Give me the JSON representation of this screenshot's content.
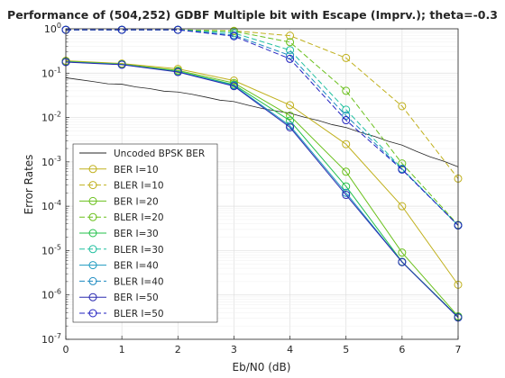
{
  "chart_data": {
    "type": "line",
    "title": "Performance of (504,252) GDBF Multiple bit with Escape (Imprv.); theta=-0.3",
    "xlabel": "Eb/N0 (dB)",
    "ylabel": "Error Rates",
    "xlim": [
      0,
      7
    ],
    "ylim": [
      1e-07,
      1
    ],
    "yscale": "log",
    "grid": true,
    "legend_position": "bottom-left",
    "x": [
      0,
      1,
      2,
      3,
      4,
      5,
      6,
      7
    ],
    "xticks": [
      "0",
      "1",
      "2",
      "3",
      "4",
      "5",
      "6",
      "7"
    ],
    "yticks": [
      {
        "value": 1e-07,
        "base": "10",
        "exp": "-7"
      },
      {
        "value": 1e-06,
        "base": "10",
        "exp": "-6"
      },
      {
        "value": 1e-05,
        "base": "10",
        "exp": "-5"
      },
      {
        "value": 0.0001,
        "base": "10",
        "exp": "-4"
      },
      {
        "value": 0.001,
        "base": "10",
        "exp": "-3"
      },
      {
        "value": 0.01,
        "base": "10",
        "exp": "-2"
      },
      {
        "value": 0.1,
        "base": "10",
        "exp": "-1"
      },
      {
        "value": 1,
        "base": "10",
        "exp": "0"
      }
    ],
    "series": [
      {
        "name": "Uncoded BPSK BER",
        "color": "#262626",
        "dash": "solid",
        "marker": "none",
        "x": [
          0,
          0.25,
          0.5,
          0.75,
          1,
          1.25,
          1.5,
          1.75,
          2,
          2.25,
          2.5,
          2.75,
          3,
          3.25,
          3.5,
          3.75,
          4,
          4.25,
          4.5,
          4.75,
          5,
          5.25,
          5.5,
          5.75,
          6,
          6.25,
          6.5,
          6.75,
          7
        ],
        "values": [
          0.0786,
          0.0712,
          0.0643,
          0.0576,
          0.0563,
          0.0488,
          0.0448,
          0.0392,
          0.0375,
          0.0334,
          0.0288,
          0.0246,
          0.0229,
          0.019,
          0.016,
          0.0141,
          0.0125,
          0.0102,
          0.00862,
          0.00692,
          0.00595,
          0.00463,
          0.00378,
          0.00292,
          0.00239,
          0.00174,
          0.0013,
          0.00103,
          0.000773
        ]
      },
      {
        "name": "BER I=10",
        "color": "#c0b01c",
        "dash": "solid",
        "marker": "circle",
        "values": [
          0.19,
          0.165,
          0.125,
          0.068,
          0.019,
          0.0025,
          0.0001,
          1.7e-06
        ]
      },
      {
        "name": "BLER I=10",
        "color": "#c0b01c",
        "dash": "dashed",
        "marker": "circle",
        "values": [
          0.95,
          0.95,
          0.95,
          0.9,
          0.7,
          0.22,
          0.018,
          0.00042
        ]
      },
      {
        "name": "BER I=20",
        "color": "#6ac01c",
        "dash": "solid",
        "marker": "circle",
        "values": [
          0.185,
          0.16,
          0.115,
          0.06,
          0.011,
          0.0006,
          9e-06,
          3.3e-07
        ]
      },
      {
        "name": "BLER I=20",
        "color": "#6ac01c",
        "dash": "dashed",
        "marker": "circle",
        "values": [
          0.95,
          0.95,
          0.95,
          0.88,
          0.5,
          0.04,
          0.00092,
          3.8e-05
        ]
      },
      {
        "name": "BER I=30",
        "color": "#22c04a",
        "dash": "solid",
        "marker": "circle",
        "values": [
          0.18,
          0.158,
          0.11,
          0.055,
          0.0085,
          0.00028,
          5.6e-06,
          3.2e-07
        ]
      },
      {
        "name": "BLER I=30",
        "color": "#22c0a0",
        "dash": "dashed",
        "marker": "circle",
        "values": [
          0.95,
          0.95,
          0.95,
          0.8,
          0.33,
          0.015,
          0.0007,
          3.7e-05
        ]
      },
      {
        "name": "BER I=40",
        "color": "#1c9ac0",
        "dash": "solid",
        "marker": "circle",
        "values": [
          0.18,
          0.157,
          0.108,
          0.053,
          0.0065,
          0.0002,
          5.5e-06,
          3.1e-07
        ]
      },
      {
        "name": "BLER I=40",
        "color": "#1c8ac0",
        "dash": "dashed",
        "marker": "circle",
        "values": [
          0.95,
          0.95,
          0.95,
          0.72,
          0.25,
          0.011,
          0.00068,
          3.7e-05
        ]
      },
      {
        "name": "BER I=50",
        "color": "#2a2ab0",
        "dash": "solid",
        "marker": "circle",
        "values": [
          0.178,
          0.155,
          0.106,
          0.051,
          0.006,
          0.00018,
          5.5e-06,
          3.1e-07
        ]
      },
      {
        "name": "BLER I=50",
        "color": "#2020c0",
        "dash": "dashed",
        "marker": "circle",
        "values": [
          0.95,
          0.95,
          0.95,
          0.68,
          0.21,
          0.0087,
          0.00067,
          3.7e-05
        ]
      }
    ]
  }
}
